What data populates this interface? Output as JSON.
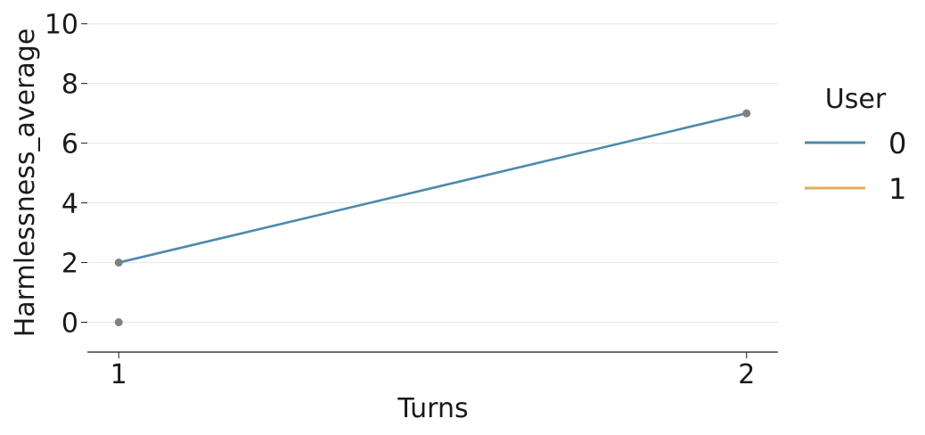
{
  "chart_data": {
    "type": "line",
    "xlabel": "Turns",
    "ylabel": "Harmlessness_average",
    "x_ticks": [
      "1",
      "2"
    ],
    "y_ticks": [
      "0",
      "2",
      "4",
      "6",
      "8",
      "10"
    ],
    "xlim": [
      0.95,
      2.05
    ],
    "ylim": [
      -1,
      10.2
    ],
    "grid": "horizontal",
    "legend": {
      "title": "User",
      "placement": "right",
      "entries": [
        {
          "label": "0",
          "color": "#4c8aad"
        },
        {
          "label": "1",
          "color": "#e2ae5a"
        }
      ]
    },
    "series": [
      {
        "name": "0",
        "color": "#4c8aad",
        "x": [
          1,
          2
        ],
        "y": [
          2,
          7
        ]
      },
      {
        "name": "1",
        "color": "#e2ae5a",
        "x": [],
        "y": []
      }
    ],
    "points": {
      "color": "#808080",
      "x": [
        1,
        1,
        2
      ],
      "y": [
        0,
        2,
        7
      ]
    }
  }
}
